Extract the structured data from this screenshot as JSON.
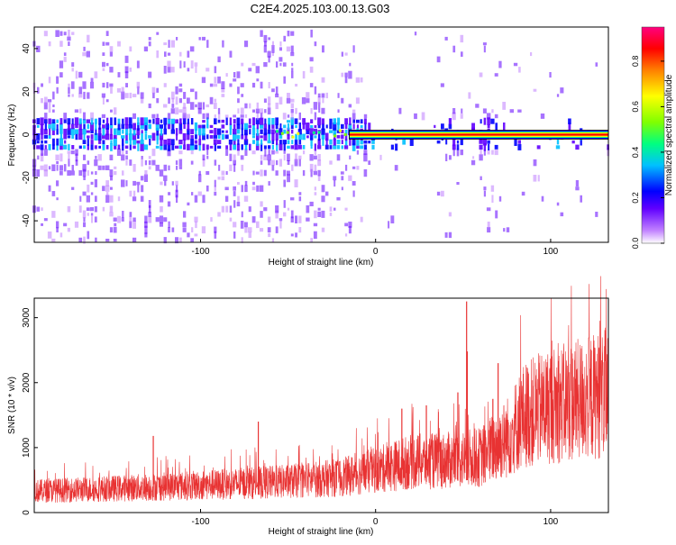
{
  "title": "C2E4.2025.103.00.13.G03",
  "chart_data": [
    {
      "type": "heatmap",
      "name": "spectrogram",
      "xlabel": "Height of straight line (km)",
      "ylabel": "Frequency (Hz)",
      "xlim": [
        -195,
        133
      ],
      "ylim": [
        -50,
        50
      ],
      "xticks": [
        -100,
        0,
        100
      ],
      "xtick_labels": [
        "-100",
        "0",
        "100"
      ],
      "yticks": [
        -40,
        -20,
        0,
        20,
        40
      ],
      "ytick_labels": [
        "-40",
        "-20",
        "0",
        "20",
        "40"
      ],
      "signal_line_frequency": 0,
      "signal_visible_from_km": -15,
      "colorbar": {
        "label": "Normalized spectral amplitude",
        "range": [
          0.0,
          0.95
        ],
        "ticks": [
          0.0,
          0.2,
          0.4,
          0.6,
          0.8
        ],
        "tick_labels": [
          "0.0",
          "0.2",
          "0.4",
          "0.6",
          "0.8"
        ],
        "colors": [
          "#ffffff",
          "#c080ff",
          "#6000ff",
          "#0000ff",
          "#00c0ff",
          "#00ff80",
          "#80ff00",
          "#ffff00",
          "#ff8000",
          "#ff0000",
          "#ff0080"
        ]
      }
    },
    {
      "type": "line",
      "name": "snr",
      "xlabel": "Height of straight line (km)",
      "ylabel": "SNR (10 * v/v)",
      "xlim": [
        -195,
        133
      ],
      "ylim": [
        0,
        3300
      ],
      "xticks": [
        -100,
        0,
        100
      ],
      "xtick_labels": [
        "-100",
        "0",
        "100"
      ],
      "yticks": [
        0,
        1000,
        2000,
        3000
      ],
      "ytick_labels": [
        "0",
        "1000",
        "2000",
        "3000"
      ],
      "line_color": "#e83232",
      "trend": {
        "x": [
          -195,
          -150,
          -100,
          -50,
          -20,
          0,
          20,
          40,
          60,
          75,
          85,
          100,
          115,
          133
        ],
        "y": [
          330,
          370,
          420,
          480,
          540,
          650,
          780,
          800,
          850,
          1150,
          1500,
          1650,
          1720,
          1850
        ]
      },
      "spikes": [
        {
          "x": 52,
          "y": 3250
        },
        {
          "x": 52.4,
          "y": 2480
        },
        {
          "x": 70,
          "y": 2300
        },
        {
          "x": 67,
          "y": 1750
        },
        {
          "x": 47,
          "y": 1850
        },
        {
          "x": 29,
          "y": 1650
        },
        {
          "x": 15,
          "y": 1600
        },
        {
          "x": -127,
          "y": 1180
        },
        {
          "x": -67,
          "y": 1400
        }
      ]
    }
  ]
}
